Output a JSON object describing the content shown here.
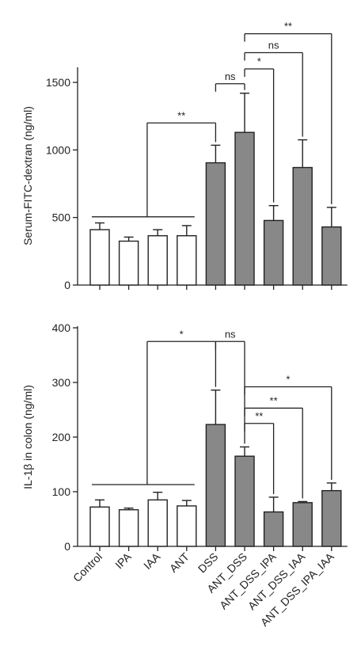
{
  "chart_data": [
    {
      "type": "bar",
      "ylabel": "Serum-FITC-dextran (ng/ml)",
      "ylim": [
        0,
        1600
      ],
      "yticks": [
        0,
        500,
        1000,
        1500
      ],
      "categories": [
        "Control",
        "IPA",
        "IAA",
        "ANT",
        "DSS",
        "ANT_DSS",
        "ANT_DSS_IPA",
        "ANT_DSS_IAA",
        "ANT_DSS_IPA_IAA"
      ],
      "values": [
        410,
        325,
        365,
        365,
        905,
        1130,
        478,
        870,
        430
      ],
      "errors": [
        50,
        30,
        45,
        75,
        130,
        290,
        110,
        205,
        145
      ],
      "fill": [
        "#ffffff",
        "#ffffff",
        "#ffffff",
        "#ffffff",
        "#888888",
        "#888888",
        "#888888",
        "#888888",
        "#888888"
      ],
      "tick_labels_shown": false,
      "significance": [
        {
          "label": "**",
          "kind": "group",
          "from": 0,
          "to": 4,
          "y": 1200
        },
        {
          "label": "ns",
          "kind": "pair",
          "from": 4,
          "to": 5,
          "y": 1490
        },
        {
          "label": "*",
          "kind": "pair",
          "from": 5,
          "to": 6,
          "y": 1600
        },
        {
          "label": "ns",
          "kind": "pair",
          "from": 5,
          "to": 7,
          "y": 1720
        },
        {
          "label": "**",
          "kind": "pair",
          "from": 5,
          "to": 8,
          "y": 1860
        }
      ]
    },
    {
      "type": "bar",
      "ylabel": "IL-1β in colon (ng/ml)",
      "ylim": [
        0,
        400
      ],
      "yticks": [
        0,
        100,
        200,
        300,
        400
      ],
      "categories": [
        "Control",
        "IPA",
        "IAA",
        "ANT",
        "DSS",
        "ANT_DSS",
        "ANT_DSS_IPA",
        "ANT_DSS_IAA",
        "ANT_DSS_IPA_IAA"
      ],
      "values": [
        72,
        67,
        85,
        74,
        223,
        165,
        63,
        80,
        102
      ],
      "errors": [
        13,
        3,
        14,
        10,
        63,
        17,
        27,
        2,
        14
      ],
      "fill": [
        "#ffffff",
        "#ffffff",
        "#ffffff",
        "#ffffff",
        "#888888",
        "#888888",
        "#888888",
        "#888888",
        "#888888"
      ],
      "tick_labels_shown": true,
      "significance": [
        {
          "label": "*",
          "kind": "group",
          "from": 0,
          "to": 4,
          "y": 375
        },
        {
          "label": "ns",
          "kind": "pair",
          "from": 4,
          "to": 5,
          "y": 375
        },
        {
          "label": "**",
          "kind": "pair",
          "from": 5,
          "to": 6,
          "y": 225
        },
        {
          "label": "**",
          "kind": "pair",
          "from": 5,
          "to": 7,
          "y": 253
        },
        {
          "label": "*",
          "kind": "pair",
          "from": 5,
          "to": 8,
          "y": 292
        }
      ]
    }
  ]
}
